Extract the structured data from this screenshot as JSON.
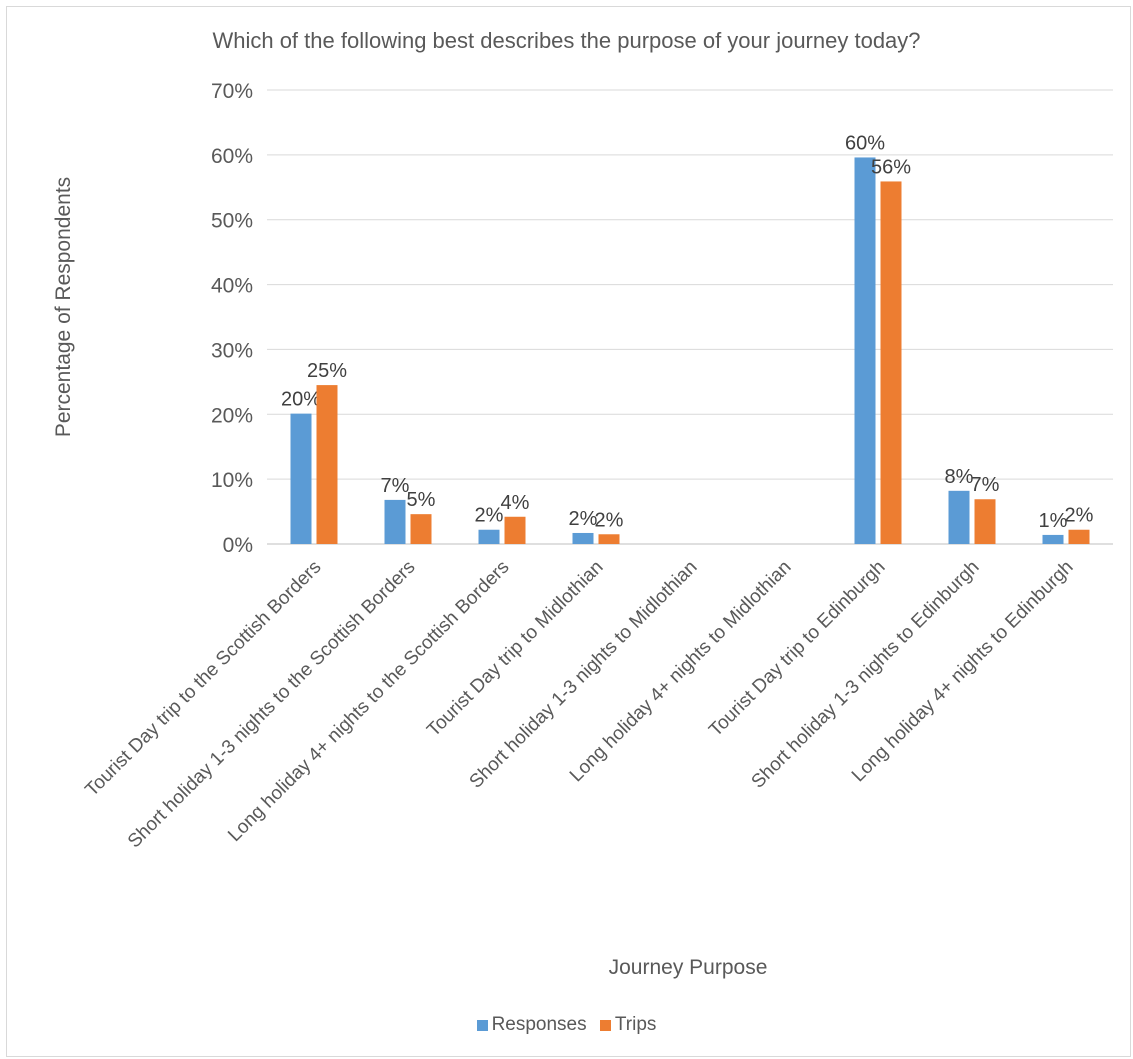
{
  "chart_data": {
    "type": "bar",
    "title": "Which of the following best describes the purpose of your journey today?",
    "xlabel": "Journey Purpose",
    "ylabel": "Percentage of Respondents",
    "ylim": [
      0,
      0.7
    ],
    "yticks": [
      "0%",
      "10%",
      "20%",
      "30%",
      "40%",
      "50%",
      "60%",
      "70%"
    ],
    "grid": true,
    "legend_position": "bottom",
    "categories": [
      "Tourist Day trip to the Scottish Borders",
      "Short holiday 1-3 nights to the Scottish Borders",
      "Long holiday 4+ nights to the Scottish Borders",
      "Tourist Day trip to Midlothian",
      "Short holiday 1-3 nights to Midlothian",
      "Long holiday 4+ nights to Midlothian",
      "Tourist Day trip to Edinburgh",
      "Short holiday 1-3 nights to Edinburgh",
      "Long holiday 4+ nights to Edinburgh"
    ],
    "series": [
      {
        "name": "Responses",
        "color": "#5b9bd5",
        "values": [
          0.201,
          0.068,
          0.022,
          0.017,
          0,
          0,
          0.596,
          0.082,
          0.014
        ],
        "labels": [
          "20%",
          "7%",
          "2%",
          "2%",
          "",
          "",
          "60%",
          "8%",
          "1%"
        ]
      },
      {
        "name": "Trips",
        "color": "#ed7d31",
        "values": [
          0.245,
          0.046,
          0.042,
          0.015,
          0,
          0,
          0.559,
          0.069,
          0.022
        ],
        "labels": [
          "25%",
          "5%",
          "4%",
          "2%",
          "",
          "",
          "56%",
          "7%",
          "2%"
        ]
      }
    ]
  }
}
